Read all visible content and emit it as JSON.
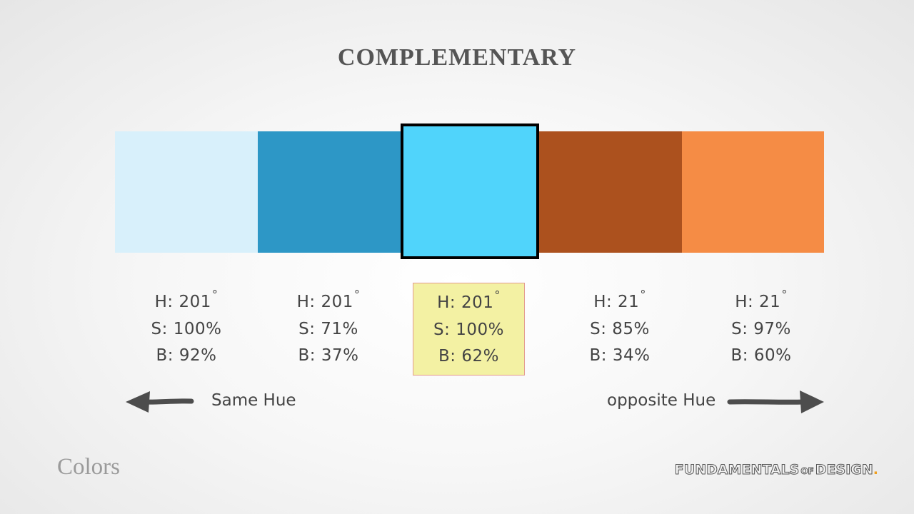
{
  "title": "COMPLEMENTARY",
  "swatches": [
    {
      "color": "#d8f0fb",
      "selected": false,
      "h": "H: 201",
      "s": "S: 100%",
      "b": "B: 92%"
    },
    {
      "color": "#2d97c6",
      "selected": false,
      "h": "H: 201",
      "s": "S: 71%",
      "b": "B: 37%"
    },
    {
      "color": "#50d4fb",
      "selected": true,
      "h": "H: 201",
      "s": "S: 100%",
      "b": "B: 62%"
    },
    {
      "color": "#ac511e",
      "selected": false,
      "h": "H: 21",
      "s": "S: 85%",
      "b": "B: 34%"
    },
    {
      "color": "#f58c45",
      "selected": false,
      "h": "H: 21",
      "s": "S: 97%",
      "b": "B: 60%"
    }
  ],
  "degree_symbol": "°",
  "highlight_color": "#f3f1a3",
  "arrows": {
    "left_label": "Same Hue",
    "right_label": "opposite Hue",
    "color": "#4d4d4d"
  },
  "footer": {
    "left": "Colors",
    "brand_part1": "FUNDAMENTALS",
    "brand_of": "OF",
    "brand_part2": "DESIGN",
    "brand_dot": "."
  }
}
